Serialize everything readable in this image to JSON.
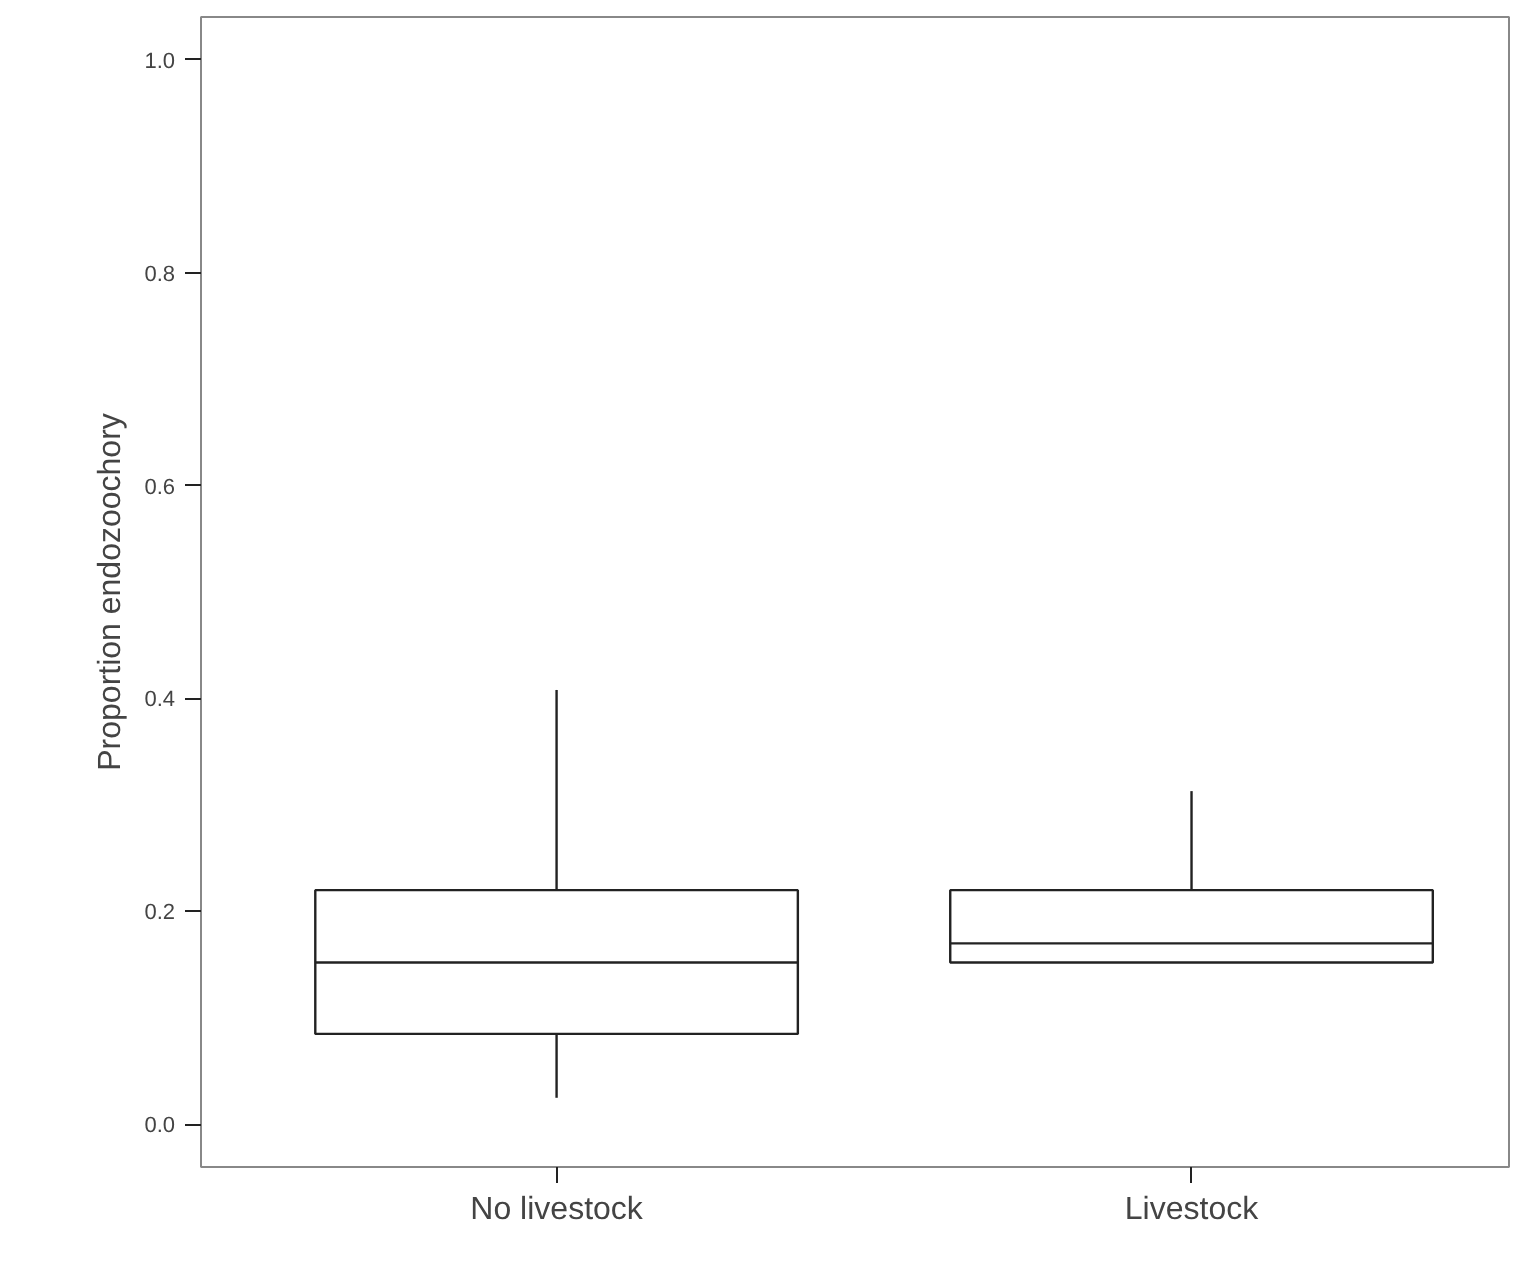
{
  "chart_data": {
    "type": "box",
    "ylabel": "Proportion endozoochory",
    "categories": [
      "No livestock",
      "Livestock"
    ],
    "boxes": [
      {
        "low": 0.025,
        "q1": 0.085,
        "median": 0.152,
        "q3": 0.22,
        "high": 0.408
      },
      {
        "low": 0.152,
        "q1": 0.152,
        "median": 0.17,
        "q3": 0.22,
        "high": 0.313
      }
    ],
    "ylim": [
      -0.04,
      1.04
    ],
    "yticks": [
      {
        "value": 0,
        "label": "0.0"
      },
      {
        "value": 0.2,
        "label": "0.2"
      },
      {
        "value": 0.4,
        "label": "0.4"
      },
      {
        "value": 0.6,
        "label": "0.6"
      },
      {
        "value": 0.8,
        "label": "0.8"
      },
      {
        "value": 1,
        "label": "1.0"
      }
    ],
    "grid": false
  }
}
